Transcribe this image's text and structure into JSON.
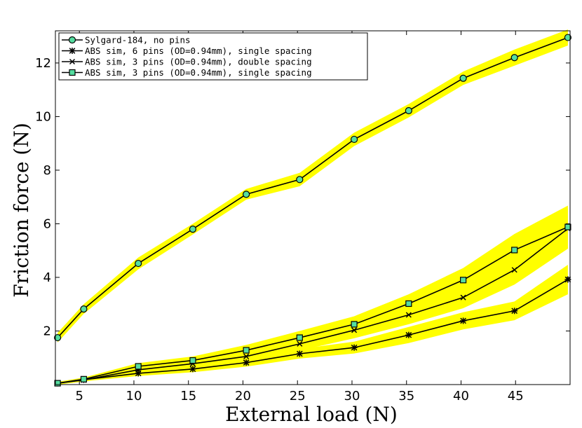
{
  "chart_data": {
    "type": "line",
    "title": "",
    "xlabel": "External load (N)",
    "ylabel": "Friction force (N)",
    "xlim": [
      2.8,
      50
    ],
    "ylim": [
      0,
      13.2
    ],
    "xticks": [
      5,
      10,
      15,
      20,
      25,
      30,
      35,
      40,
      45
    ],
    "yticks": [
      2,
      4,
      6,
      8,
      10,
      12
    ],
    "legend_position": "top-left",
    "band_color": "#ffff00",
    "series": [
      {
        "name": "Sylgard-184, no pins",
        "marker": "circle",
        "marker_fill": "#55dda0",
        "x": [
          3.0,
          5.4,
          10.4,
          15.4,
          20.3,
          25.2,
          30.2,
          35.2,
          40.2,
          44.9,
          49.8
        ],
        "y": [
          1.75,
          2.82,
          4.52,
          5.8,
          7.1,
          7.65,
          9.15,
          10.22,
          11.43,
          12.2,
          12.95
        ],
        "band": [
          0.18,
          0.18,
          0.22,
          0.2,
          0.2,
          0.25,
          0.25,
          0.25,
          0.25,
          0.3,
          0.3
        ]
      },
      {
        "name": "ABS sim, 6 pins (OD=0.94mm), single spacing",
        "marker": "asterisk",
        "marker_fill": "#000000",
        "x": [
          3.0,
          5.4,
          10.4,
          15.4,
          20.3,
          25.2,
          30.2,
          35.2,
          40.2,
          44.9,
          49.8
        ],
        "y": [
          0.05,
          0.18,
          0.42,
          0.58,
          0.82,
          1.15,
          1.38,
          1.85,
          2.38,
          2.75,
          3.92
        ],
        "band": [
          0.05,
          0.06,
          0.1,
          0.12,
          0.15,
          0.18,
          0.22,
          0.3,
          0.32,
          0.35,
          0.55
        ]
      },
      {
        "name": "ABS sim, 3 pins (OD=0.94mm), double spacing",
        "marker": "x",
        "marker_fill": "#000000",
        "x": [
          3.0,
          5.4,
          10.4,
          15.4,
          20.3,
          25.2,
          30.2,
          35.2,
          40.2,
          44.9,
          49.8
        ],
        "y": [
          0.05,
          0.17,
          0.55,
          0.78,
          1.05,
          1.52,
          2.03,
          2.6,
          3.25,
          4.28,
          5.82
        ],
        "band": [
          0.05,
          0.06,
          0.12,
          0.15,
          0.2,
          0.25,
          0.3,
          0.35,
          0.4,
          0.55,
          0.75
        ]
      },
      {
        "name": "ABS sim, 3 pins (OD=0.94mm), single spacing",
        "marker": "square",
        "marker_fill": "#55dda0",
        "x": [
          3.0,
          5.4,
          10.4,
          15.4,
          20.3,
          25.2,
          30.2,
          35.2,
          40.2,
          44.9,
          49.8
        ],
        "y": [
          0.05,
          0.2,
          0.68,
          0.9,
          1.28,
          1.75,
          2.25,
          3.02,
          3.9,
          5.02,
          5.88
        ],
        "band": [
          0.05,
          0.06,
          0.12,
          0.15,
          0.2,
          0.25,
          0.3,
          0.35,
          0.45,
          0.6,
          0.8
        ]
      }
    ]
  }
}
